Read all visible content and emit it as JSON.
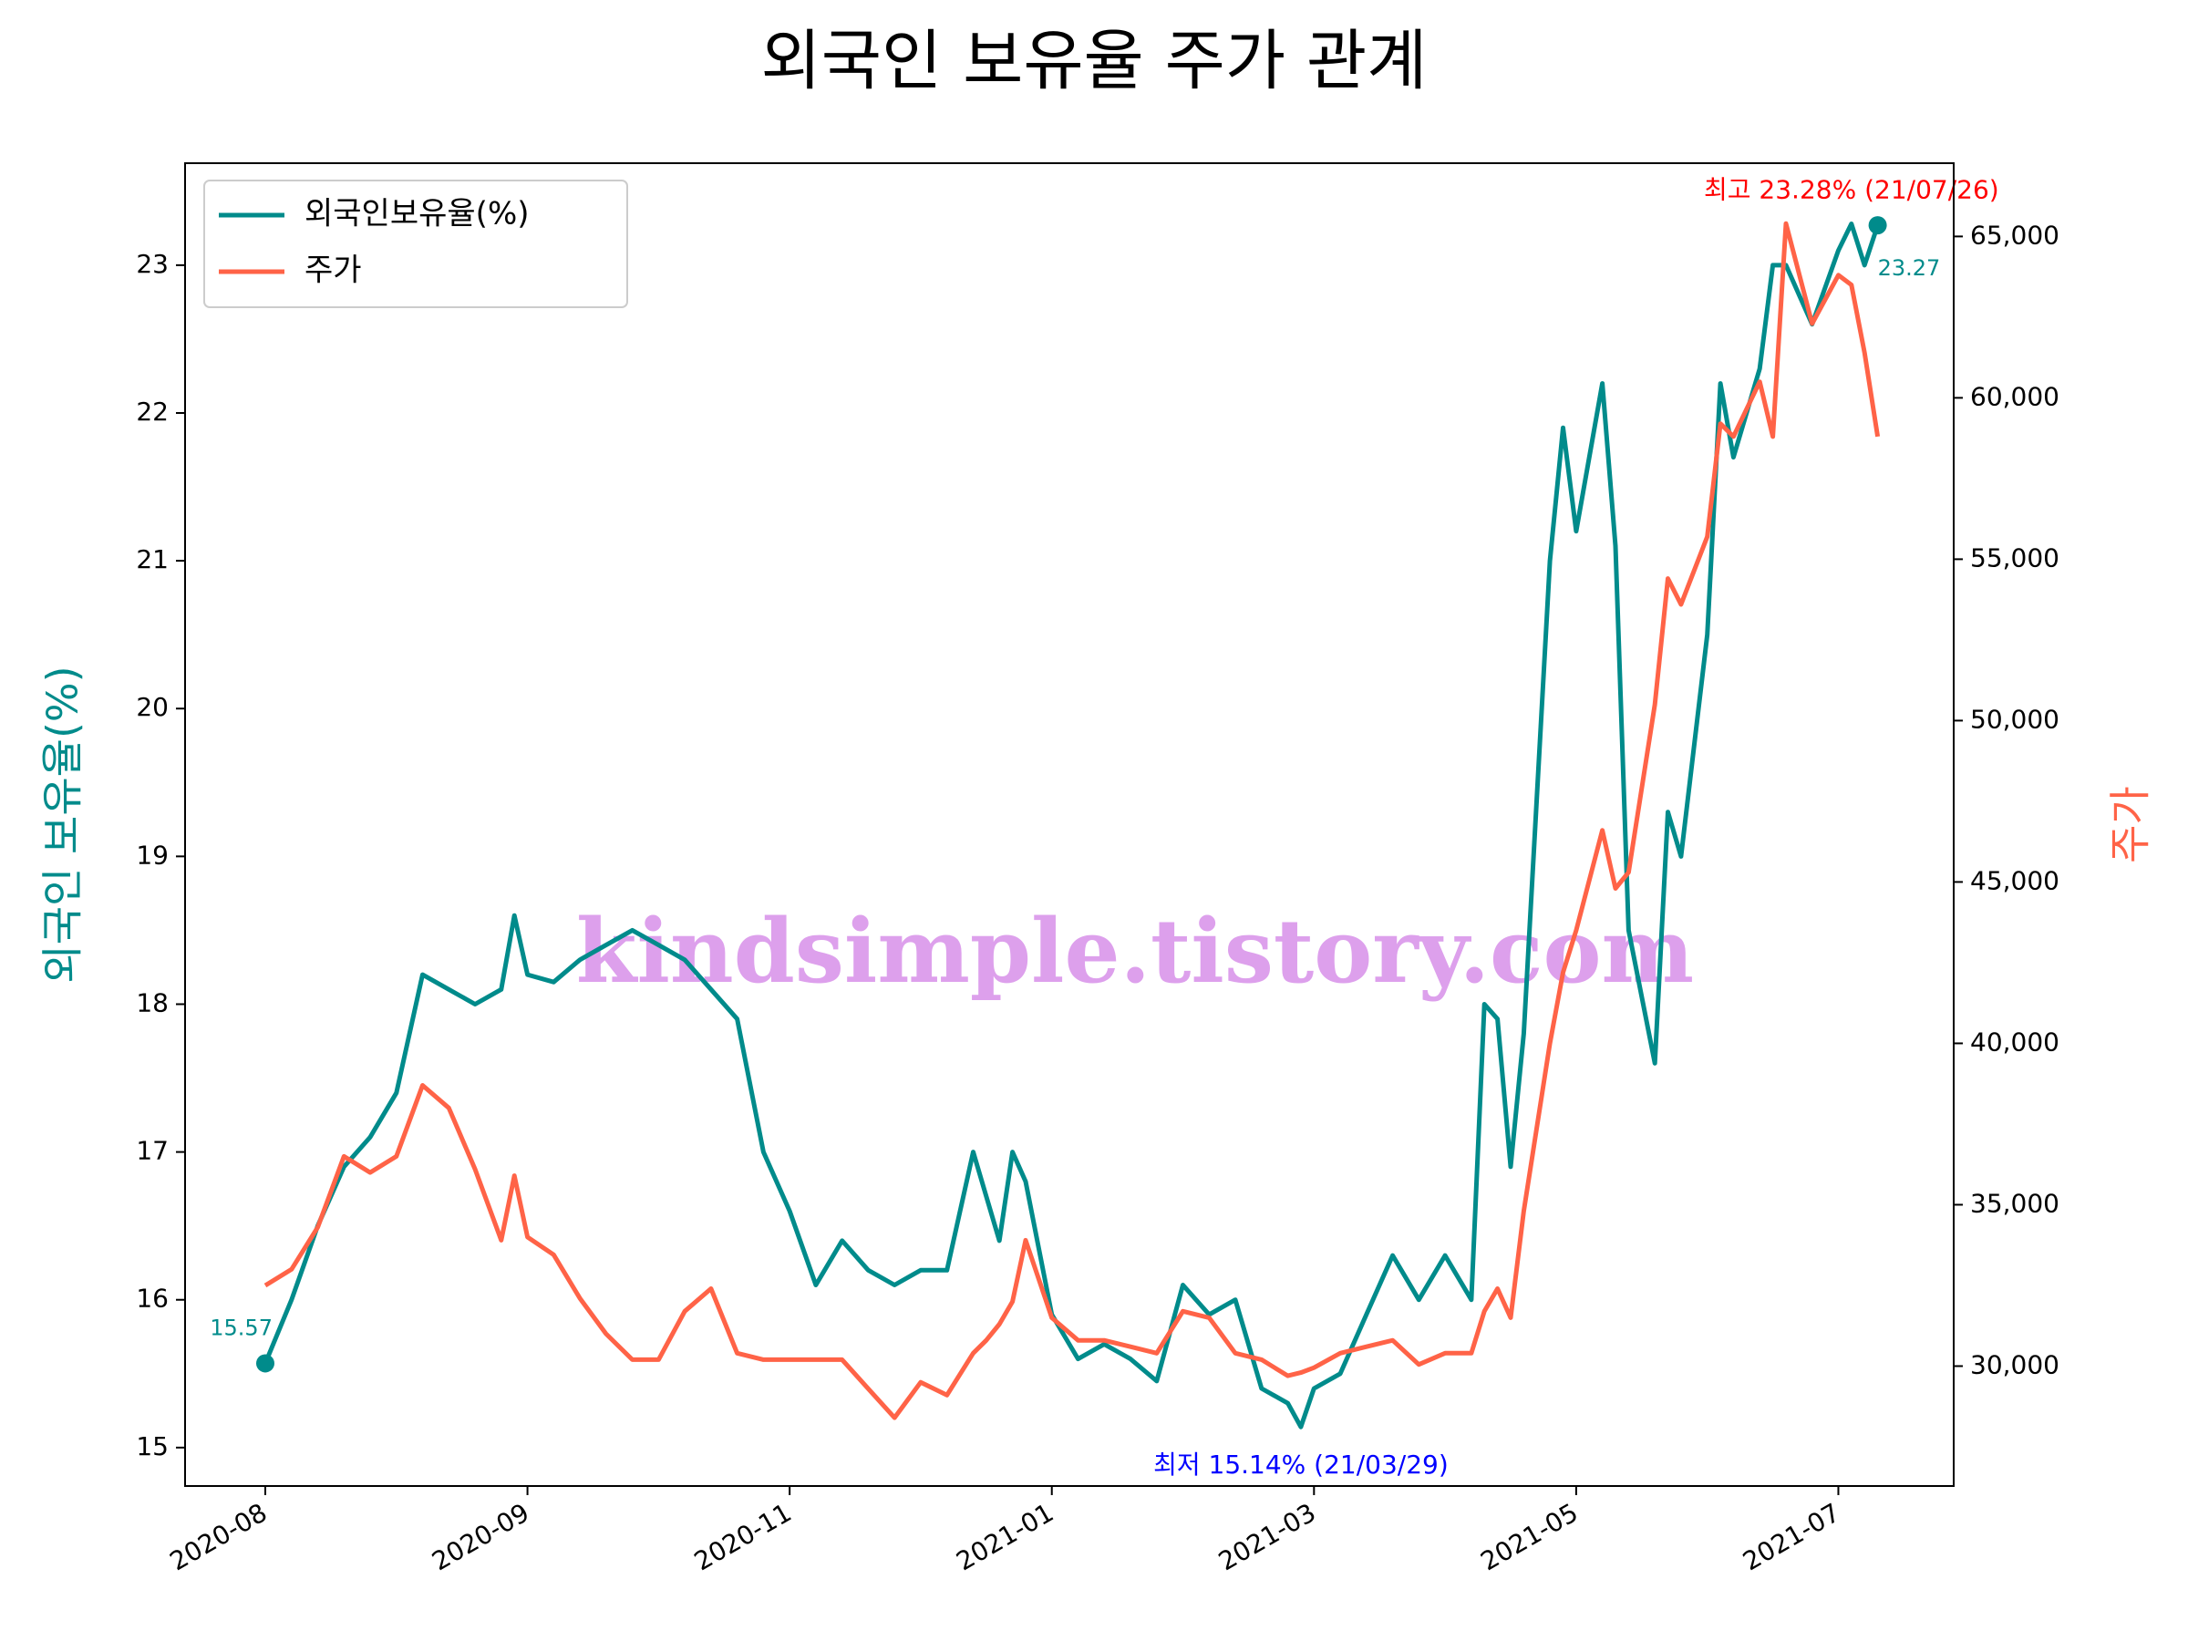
{
  "chart_data": {
    "type": "line",
    "title": "외국인 보유율 주가 관계",
    "ylabel": "외국인 보유율(%)",
    "y2label": "주가",
    "watermark": "kindsimple.tistory.com",
    "legend": "upper left",
    "x": [
      0,
      0.1,
      0.2,
      0.3,
      0.4,
      0.5,
      0.6,
      0.7,
      0.8,
      0.9,
      0.95,
      1.0,
      1.1,
      1.2,
      1.3,
      1.4,
      1.5,
      1.6,
      1.7,
      1.8,
      1.9,
      2.0,
      2.1,
      2.2,
      2.3,
      2.4,
      2.5,
      2.6,
      2.7,
      2.75,
      2.8,
      2.85,
      2.9,
      3.0,
      3.1,
      3.2,
      3.3,
      3.4,
      3.5,
      3.6,
      3.7,
      3.8,
      3.9,
      3.95,
      4.0,
      4.1,
      4.2,
      4.3,
      4.4,
      4.5,
      4.6,
      4.65,
      4.7,
      4.75,
      4.8,
      4.9,
      4.95,
      5.0,
      5.1,
      5.15,
      5.2,
      5.3,
      5.35,
      5.4,
      5.5,
      5.55,
      5.6,
      5.7,
      5.75,
      5.8,
      5.9,
      6.0,
      6.05,
      6.1,
      6.15
    ],
    "xlim": [
      -0.306,
      6.44
    ],
    "xticks": [
      {
        "value": 0,
        "label": "2020-08"
      },
      {
        "value": 1,
        "label": "2020-09"
      },
      {
        "value": 2,
        "label": "2020-11"
      },
      {
        "value": 3,
        "label": "2021-01"
      },
      {
        "value": 4,
        "label": "2021-03"
      },
      {
        "value": 5,
        "label": "2021-05"
      },
      {
        "value": 6,
        "label": "2021-07"
      }
    ],
    "ylim": [
      14.74,
      23.69
    ],
    "yticks": [
      15,
      16,
      17,
      18,
      19,
      20,
      21,
      22,
      23
    ],
    "y2lim": [
      26285,
      67270
    ],
    "y2ticks": [
      {
        "value": 30000,
        "label": "30,000"
      },
      {
        "value": 35000,
        "label": "35,000"
      },
      {
        "value": 40000,
        "label": "40,000"
      },
      {
        "value": 45000,
        "label": "45,000"
      },
      {
        "value": 50000,
        "label": "50,000"
      },
      {
        "value": 55000,
        "label": "55,000"
      },
      {
        "value": 60000,
        "label": "60,000"
      },
      {
        "value": 65000,
        "label": "65,000"
      }
    ],
    "series": [
      {
        "name": "외국인보유율(%)",
        "color": "#008b8b",
        "values": [
          15.57,
          16.0,
          16.5,
          16.9,
          17.1,
          17.4,
          18.2,
          18.1,
          18.0,
          18.1,
          18.6,
          18.2,
          18.15,
          18.3,
          18.4,
          18.5,
          18.4,
          18.3,
          18.1,
          17.9,
          17.0,
          16.6,
          16.1,
          16.4,
          16.2,
          16.1,
          16.2,
          16.2,
          17.0,
          16.7,
          16.4,
          17.0,
          16.8,
          15.9,
          15.6,
          15.7,
          15.6,
          15.45,
          16.1,
          15.9,
          16.0,
          15.4,
          15.3,
          15.14,
          15.4,
          15.5,
          15.9,
          16.3,
          16.0,
          16.3,
          16.0,
          18.0,
          17.9,
          16.9,
          17.8,
          21.0,
          21.9,
          21.2,
          22.2,
          21.1,
          18.5,
          17.6,
          19.3,
          19.0,
          20.5,
          22.2,
          21.7,
          22.3,
          23.0,
          23.0,
          22.6,
          23.1,
          23.28,
          23.0,
          23.27
        ]
      },
      {
        "name": "주가",
        "color": "#ff6347",
        "axis": "y2",
        "values": [
          32500,
          33000,
          34300,
          36500,
          36000,
          36500,
          38700,
          38000,
          36100,
          33900,
          35900,
          34000,
          33450,
          32100,
          31000,
          30200,
          30200,
          31700,
          32400,
          30400,
          30200,
          30200,
          30200,
          30200,
          29300,
          28400,
          29500,
          29100,
          30400,
          30800,
          31300,
          32000,
          33900,
          31500,
          30800,
          30800,
          30600,
          30400,
          31700,
          31500,
          30400,
          30200,
          29700,
          29800,
          29950,
          30400,
          30600,
          30800,
          30050,
          30400,
          30400,
          31700,
          32400,
          31500,
          34800,
          40000,
          42200,
          43500,
          46600,
          44800,
          45300,
          50500,
          54400,
          53600,
          55700,
          59200,
          58800,
          60500,
          58800,
          65400,
          62300,
          63800,
          63500,
          61400,
          58800
        ]
      }
    ],
    "annotations": [
      {
        "text": "최고 23.28% (21/07/26)",
        "color": "#ff0000"
      },
      {
        "text": "최저 15.14% (21/03/29)",
        "color": "#0000ff"
      }
    ]
  }
}
